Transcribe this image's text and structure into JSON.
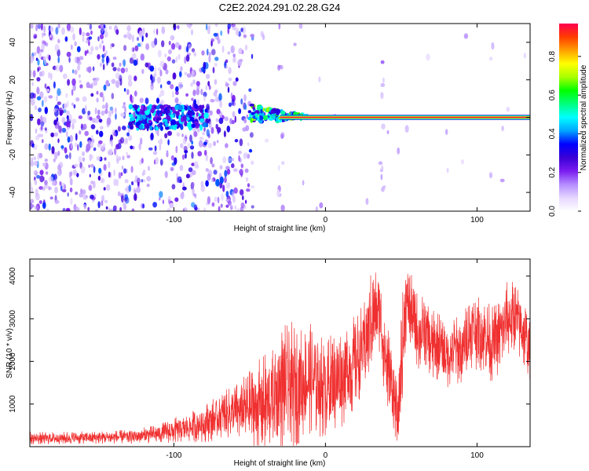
{
  "title": "C2E2.2024.291.02.28.G24",
  "colorbar": {
    "label": "Normalized spectral amplitude",
    "ticks": [
      {
        "v": 0.0,
        "label": "0.0"
      },
      {
        "v": 0.2,
        "label": "0.2"
      },
      {
        "v": 0.4,
        "label": "0.4"
      },
      {
        "v": 0.6,
        "label": "0.6"
      },
      {
        "v": 0.8,
        "label": "0.8"
      }
    ],
    "range": [
      0,
      0.97
    ],
    "stops": [
      "#ffffff",
      "#e6d7ff",
      "#b48cff",
      "#7a1cf0",
      "#3a00d6",
      "#0000ff",
      "#00a6ff",
      "#00ffff",
      "#00ff80",
      "#00ff00",
      "#a8ff00",
      "#ffff00",
      "#ffa000",
      "#ff3c00",
      "#ff0050"
    ]
  },
  "chart_data": [
    {
      "type": "heatmap",
      "xlabel": "Height of straight line (km)",
      "ylabel": "Frequency (Hz)",
      "xlim": [
        -195,
        135
      ],
      "ylim": [
        -50,
        50
      ],
      "xticks": [
        {
          "v": -100,
          "label": "-100"
        },
        {
          "v": 0,
          "label": "0"
        },
        {
          "v": 100,
          "label": "100"
        }
      ],
      "yticks": [
        {
          "v": -40,
          "label": "-40"
        },
        {
          "v": -20,
          "label": "-20"
        },
        {
          "v": 0,
          "label": "0"
        },
        {
          "v": 20,
          "label": "20"
        },
        {
          "v": 40,
          "label": "40"
        }
      ],
      "dominant_frequency_hz": 0,
      "noise_region_km": [
        -195,
        -48
      ],
      "signal_onset_km": -50,
      "high_amplitude_region_km": [
        -30,
        135
      ]
    },
    {
      "type": "line",
      "xlabel": "Height of straight line (km)",
      "ylabel": "SNR (10 * v/v)",
      "xlim": [
        -195,
        135
      ],
      "ylim": [
        0,
        4400
      ],
      "xticks": [
        {
          "v": -100,
          "label": "-100"
        },
        {
          "v": 0,
          "label": "0"
        },
        {
          "v": 100,
          "label": "100"
        }
      ],
      "yticks": [
        {
          "v": 1000,
          "label": "1000"
        },
        {
          "v": 2000,
          "label": "2000"
        },
        {
          "v": 3000,
          "label": "3000"
        },
        {
          "v": 4000,
          "label": "4000"
        }
      ],
      "series": [
        {
          "color": "#f03030",
          "envelope_x": [
            -195,
            -180,
            -160,
            -140,
            -125,
            -110,
            -100,
            -90,
            -80,
            -70,
            -60,
            -50,
            -40,
            -35,
            -30,
            -25,
            -20,
            -15,
            -10,
            -5,
            0,
            5,
            10,
            15,
            20,
            25,
            30,
            33,
            36,
            40,
            45,
            48,
            50,
            53,
            55,
            58,
            62,
            66,
            70,
            75,
            80,
            85,
            90,
            95,
            100,
            105,
            110,
            115,
            120,
            125,
            130,
            135
          ],
          "envelope_mid": [
            200,
            200,
            210,
            220,
            240,
            300,
            380,
            450,
            550,
            700,
            800,
            900,
            1000,
            1100,
            1350,
            1400,
            1450,
            1500,
            1600,
            1500,
            1400,
            1500,
            1600,
            1800,
            2000,
            2300,
            2900,
            3200,
            3100,
            2000,
            1200,
            600,
            1800,
            3400,
            3300,
            3000,
            2600,
            2800,
            2300,
            2400,
            2100,
            2300,
            2200,
            2700,
            2700,
            2600,
            2400,
            2600,
            3000,
            3000,
            2800,
            2200
          ],
          "envelope_amp": [
            150,
            150,
            150,
            160,
            180,
            220,
            300,
            350,
            450,
            550,
            650,
            900,
            1200,
            1200,
            1500,
            1500,
            1500,
            1300,
            1300,
            1300,
            1200,
            1200,
            1200,
            1200,
            1100,
            1100,
            1200,
            1000,
            900,
            1200,
            900,
            600,
            1500,
            1000,
            900,
            900,
            900,
            900,
            900,
            800,
            800,
            800,
            800,
            900,
            900,
            900,
            900,
            900,
            900,
            900,
            900,
            800
          ]
        }
      ]
    }
  ]
}
